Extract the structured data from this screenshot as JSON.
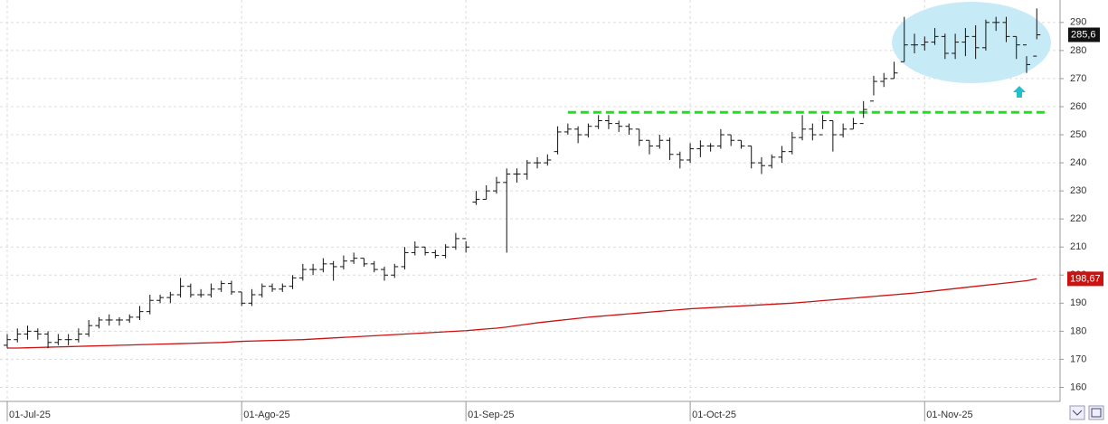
{
  "chart_data": {
    "type": "ohlc",
    "categories": [
      "01-Jul-25",
      null,
      null,
      null,
      null,
      null,
      null,
      null,
      null,
      null,
      null,
      null,
      null,
      null,
      null,
      null,
      null,
      null,
      null,
      null,
      null,
      null,
      null,
      "01-Ago-25",
      null,
      null,
      null,
      null,
      null,
      null,
      null,
      null,
      null,
      null,
      null,
      null,
      null,
      null,
      null,
      null,
      null,
      null,
      null,
      null,
      null,
      "01-Sep-25",
      null,
      null,
      null,
      null,
      null,
      null,
      null,
      null,
      null,
      null,
      null,
      null,
      null,
      null,
      null,
      null,
      null,
      null,
      null,
      null,
      null,
      "01-Oct-25",
      null,
      null,
      null,
      null,
      null,
      null,
      null,
      null,
      null,
      null,
      null,
      null,
      null,
      null,
      null,
      null,
      null,
      null,
      null,
      null,
      null,
      null,
      "01-Nov-25",
      null,
      null,
      null,
      null,
      null,
      null,
      null,
      null,
      null,
      null,
      null
    ],
    "ohlc": {
      "open": [
        175,
        177,
        179,
        180,
        179,
        176,
        177,
        177,
        179,
        182,
        184,
        184,
        184,
        185,
        187,
        191,
        192,
        193,
        196,
        193,
        193,
        195,
        197,
        194,
        190,
        193,
        196,
        195,
        196,
        199,
        202,
        202,
        204,
        203,
        205,
        206,
        204,
        202,
        200,
        203,
        208,
        210,
        208,
        207,
        210,
        213,
        226,
        227,
        230,
        233,
        236,
        236,
        240,
        240,
        244,
        251,
        252,
        250,
        253,
        255,
        254,
        253,
        252,
        248,
        246,
        248,
        243,
        241,
        245,
        246,
        246,
        250,
        248,
        246,
        240,
        239,
        242,
        244,
        249,
        252,
        250,
        255,
        250,
        252,
        254,
        262,
        269,
        270,
        276,
        282,
        282,
        283,
        285,
        279,
        283,
        285,
        281,
        290,
        290,
        285,
        282,
        278
      ],
      "high": [
        179,
        181,
        182,
        181,
        180,
        179,
        179,
        181,
        184,
        185,
        186,
        185,
        186,
        189,
        193,
        193,
        194,
        199,
        197,
        195,
        197,
        198,
        198,
        194,
        195,
        197,
        197,
        197,
        200,
        204,
        204,
        206,
        205,
        207,
        208,
        206,
        205,
        203,
        204,
        210,
        212,
        210,
        209,
        211,
        215,
        212,
        230,
        232,
        235,
        238,
        238,
        241,
        242,
        243,
        253,
        254,
        253,
        254,
        257,
        257,
        255,
        254,
        252,
        248,
        250,
        249,
        244,
        247,
        248,
        247,
        252,
        250,
        248,
        246,
        242,
        243,
        246,
        251,
        257,
        254,
        257,
        255,
        254,
        256,
        262,
        271,
        272,
        276,
        292,
        286,
        285,
        288,
        286,
        286,
        288,
        289,
        291,
        292,
        292,
        285,
        278,
        295
      ],
      "low": [
        174,
        176,
        177,
        177,
        174,
        175,
        175,
        176,
        178,
        181,
        182,
        182,
        183,
        184,
        186,
        190,
        190,
        192,
        192,
        192,
        192,
        194,
        193,
        189,
        189,
        192,
        194,
        194,
        195,
        198,
        200,
        201,
        198,
        202,
        204,
        203,
        201,
        198,
        199,
        202,
        207,
        207,
        206,
        206,
        209,
        208,
        225,
        227,
        229,
        208,
        233,
        234,
        238,
        239,
        243,
        250,
        247,
        249,
        252,
        252,
        251,
        250,
        246,
        243,
        245,
        241,
        238,
        240,
        242,
        244,
        245,
        246,
        245,
        238,
        236,
        238,
        240,
        243,
        248,
        248,
        252,
        244,
        249,
        252,
        256,
        264,
        267,
        270,
        276,
        279,
        280,
        282,
        277,
        277,
        278,
        277,
        280,
        287,
        283,
        277,
        272,
        284
      ],
      "close": [
        177,
        179,
        180,
        179,
        176,
        177,
        177,
        179,
        182,
        184,
        184,
        184,
        185,
        187,
        191,
        192,
        193,
        196,
        193,
        193,
        195,
        197,
        194,
        190,
        193,
        196,
        195,
        196,
        199,
        202,
        202,
        204,
        203,
        205,
        206,
        204,
        202,
        200,
        203,
        208,
        210,
        208,
        207,
        210,
        213,
        210,
        227,
        230,
        233,
        236,
        236,
        240,
        240,
        241,
        251,
        252,
        250,
        253,
        255,
        254,
        253,
        252,
        248,
        246,
        248,
        243,
        241,
        245,
        246,
        246,
        250,
        248,
        246,
        240,
        239,
        242,
        244,
        249,
        252,
        250,
        255,
        250,
        252,
        254,
        259,
        269,
        270,
        272,
        282,
        282,
        283,
        285,
        279,
        283,
        285,
        281,
        290,
        290,
        285,
        282,
        275,
        285.6
      ],
      "color": "#111111",
      "last_label": "285,6"
    },
    "ma": {
      "color": "#cc1111",
      "last_label": "198,67",
      "values": [
        174,
        174,
        174.1,
        174.2,
        174.3,
        174.4,
        174.5,
        174.6,
        174.7,
        174.8,
        174.9,
        175,
        175.1,
        175.2,
        175.3,
        175.4,
        175.5,
        175.6,
        175.7,
        175.8,
        175.9,
        176,
        176.2,
        176.4,
        176.5,
        176.6,
        176.7,
        176.8,
        176.9,
        177,
        177.2,
        177.4,
        177.6,
        177.8,
        178,
        178.2,
        178.4,
        178.6,
        178.8,
        179,
        179.2,
        179.4,
        179.6,
        179.8,
        180,
        180.2,
        180.5,
        180.8,
        181.1,
        181.5,
        182,
        182.5,
        183,
        183.4,
        183.8,
        184.2,
        184.6,
        185,
        185.3,
        185.6,
        185.9,
        186.2,
        186.5,
        186.8,
        187.1,
        187.4,
        187.7,
        188,
        188.2,
        188.4,
        188.6,
        188.8,
        189,
        189.2,
        189.4,
        189.6,
        189.8,
        190,
        190.3,
        190.6,
        190.9,
        191.2,
        191.5,
        191.8,
        192.1,
        192.4,
        192.7,
        193,
        193.3,
        193.6,
        194,
        194.4,
        194.8,
        195.2,
        195.6,
        196,
        196.4,
        196.8,
        197.2,
        197.6,
        198,
        198.67
      ]
    },
    "resistance": {
      "value": 258,
      "from": 55,
      "color": "#22dd22"
    },
    "ylim": [
      155,
      298
    ],
    "yticks": [
      160,
      170,
      180,
      190,
      200,
      210,
      220,
      230,
      240,
      250,
      260,
      270,
      280,
      290
    ],
    "grid": true
  }
}
